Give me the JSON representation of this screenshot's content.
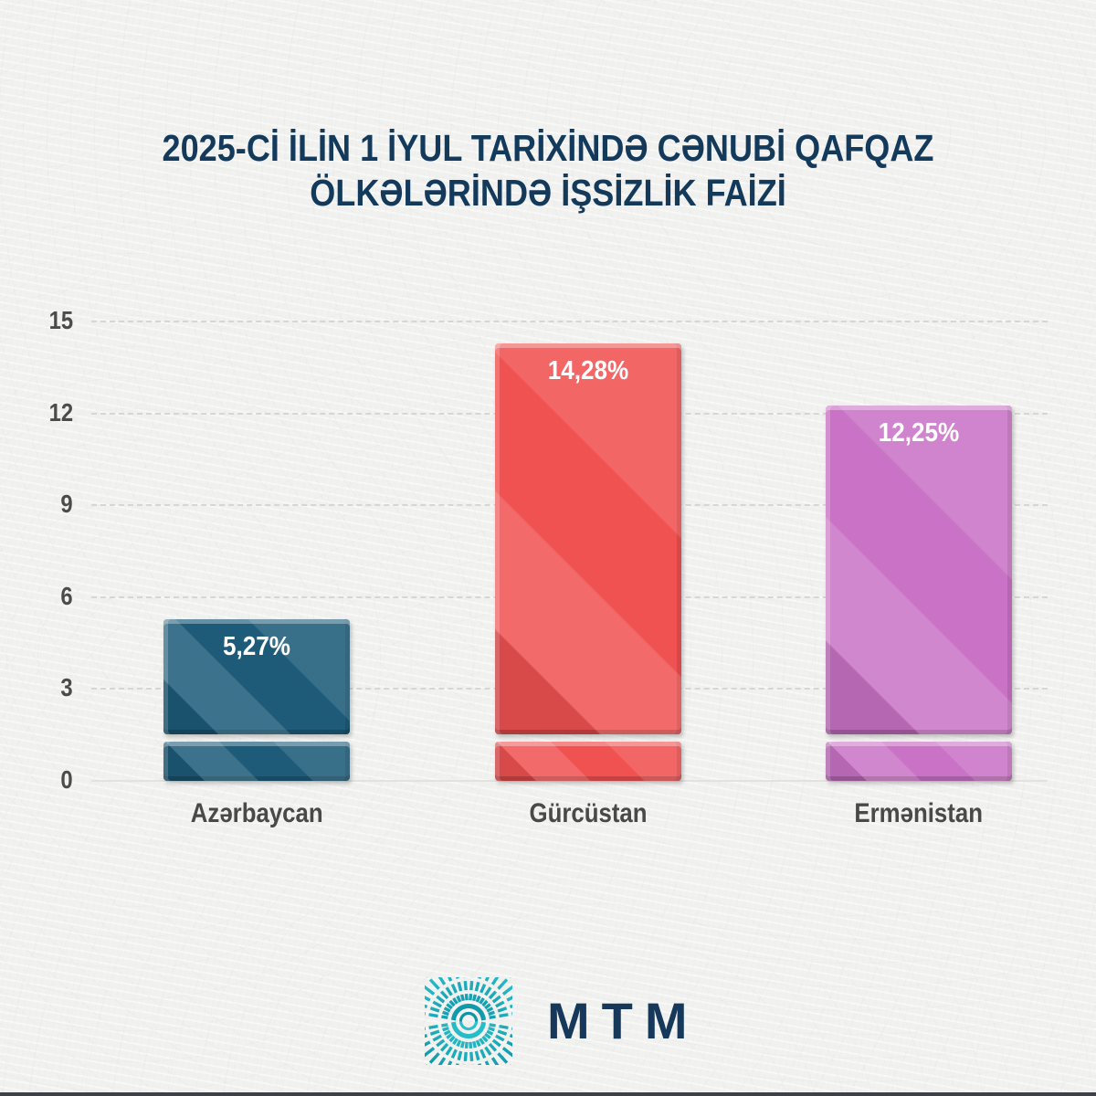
{
  "title": {
    "line1": "2025-Cİ İLİN 1 İYUL TARİXİNDƏ CƏNUBİ QAFQAZ",
    "line2": "ÖLKƏLƏRİNDƏ İŞSİZLİK FAİZİ"
  },
  "chart_data": {
    "type": "bar",
    "title": "2025-Cİ İLİN 1 İYUL TARİXİNDƏ CƏNUBİ QAFQAZ ÖLKƏLƏRİNDƏ İŞSİZLİK FAİZİ",
    "categories": [
      "Azərbaycan",
      "Gürcüstan",
      "Ermənistan"
    ],
    "values": [
      5.27,
      14.28,
      12.25
    ],
    "value_labels": [
      "5,27%",
      "14,28%",
      "12,25%"
    ],
    "bar_colors": [
      "#1d5b79",
      "#f05151",
      "#ca73c6"
    ],
    "xlabel": "",
    "ylabel": "",
    "ylim": [
      0,
      15
    ],
    "yticks": [
      0,
      3,
      6,
      9,
      12,
      15
    ],
    "grid": "horizontal-dashed",
    "legend": "none",
    "value_label_position": "inside-top",
    "bar_style": "beveled glossy segments with detached base slice"
  },
  "logo": {
    "text": "MTM",
    "icon": "burst-rays-icon",
    "icon_color_top": "#2cc3cd",
    "icon_color_bottom": "#0c93a6",
    "text_color": "#16395b"
  },
  "colors": {
    "background": "#f1f1ef",
    "title_text": "#143a5b",
    "tick_text": "#4b4b4b",
    "category_text": "#494949",
    "gridline": "#d6d6d2",
    "footer_strip": "#3c4247",
    "value_text": "#ffffff"
  }
}
